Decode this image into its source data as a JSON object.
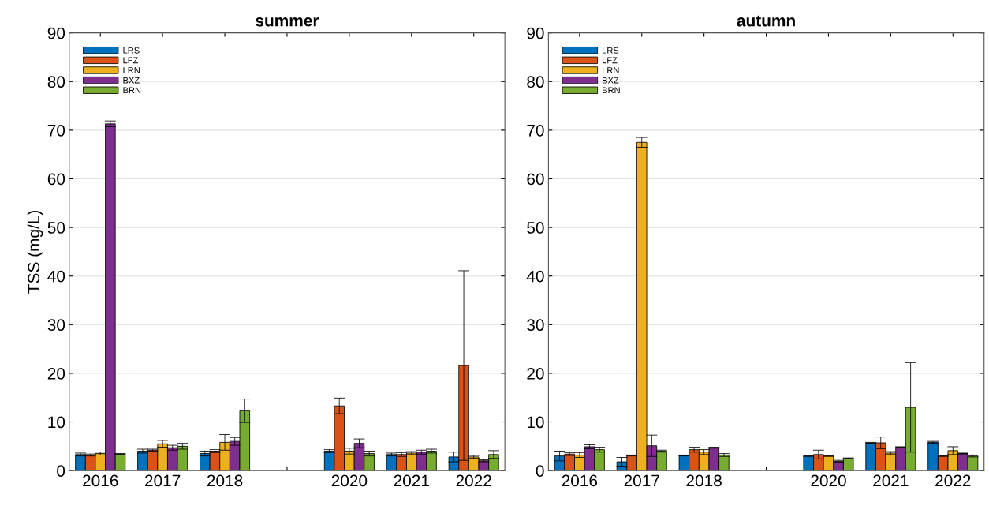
{
  "chart_data": [
    {
      "type": "bar",
      "title": "summer",
      "ylabel": "TSS (mg/L)",
      "categories": [
        "2016",
        "2017",
        "2018",
        null,
        "2020",
        "2021",
        "2022"
      ],
      "ylim": [
        0,
        90
      ],
      "yticks": [
        0,
        10,
        20,
        30,
        40,
        50,
        60,
        70,
        80,
        90
      ],
      "grid": "y",
      "legend": "top left",
      "series": [
        {
          "name": "LRS",
          "color": "#0072bd",
          "values": [
            3.3,
            4.0,
            3.5,
            null,
            4.0,
            3.3,
            2.8
          ],
          "errors": [
            0.3,
            0.4,
            0.5,
            null,
            0.3,
            0.3,
            1.0
          ]
        },
        {
          "name": "LFZ",
          "color": "#d95319",
          "values": [
            3.2,
            4.2,
            4.0,
            null,
            13.3,
            3.3,
            21.6
          ],
          "errors": [
            0.2,
            0.2,
            0.3,
            null,
            1.6,
            0.4,
            19.5
          ]
        },
        {
          "name": "LRN",
          "color": "#edb120",
          "values": [
            3.5,
            5.5,
            5.8,
            null,
            4.0,
            3.6,
            2.8
          ],
          "errors": [
            0.3,
            0.7,
            1.6,
            null,
            0.6,
            0.3,
            0.3
          ]
        },
        {
          "name": "BXZ",
          "color": "#7e2f8e",
          "values": [
            71.3,
            4.7,
            6.0,
            null,
            5.6,
            3.8,
            2.0
          ],
          "errors": [
            0.6,
            0.5,
            0.8,
            null,
            0.9,
            0.4,
            0.2
          ]
        },
        {
          "name": "BRN",
          "color": "#77ac30",
          "values": [
            3.4,
            5.0,
            12.3,
            null,
            3.5,
            4.0,
            3.3
          ],
          "errors": [
            0.1,
            0.6,
            2.4,
            null,
            0.5,
            0.4,
            0.8
          ]
        }
      ]
    },
    {
      "type": "bar",
      "title": "autumn",
      "categories": [
        "2016",
        "2017",
        "2018",
        null,
        "2020",
        "2021",
        "2022"
      ],
      "ylim": [
        0,
        90
      ],
      "yticks": [
        0,
        10,
        20,
        30,
        40,
        50,
        60,
        70,
        80,
        90
      ],
      "grid": "y",
      "legend": "top left",
      "series": [
        {
          "name": "LRS",
          "color": "#0072bd",
          "values": [
            3.0,
            1.8,
            3.1,
            null,
            3.0,
            5.7,
            5.8
          ],
          "errors": [
            1.0,
            0.9,
            0.1,
            null,
            0.1,
            0.1,
            0.2
          ]
        },
        {
          "name": "LFZ",
          "color": "#d95319",
          "values": [
            3.4,
            3.1,
            4.3,
            null,
            3.3,
            5.7,
            3.0
          ],
          "errors": [
            0.3,
            0.1,
            0.5,
            null,
            0.9,
            1.2,
            0.1
          ]
        },
        {
          "name": "LRN",
          "color": "#edb120",
          "values": [
            3.2,
            67.5,
            3.8,
            null,
            3.0,
            3.6,
            4.1
          ],
          "errors": [
            0.5,
            1.0,
            0.5,
            null,
            0.1,
            0.3,
            0.8
          ]
        },
        {
          "name": "BXZ",
          "color": "#7e2f8e",
          "values": [
            4.9,
            5.1,
            4.7,
            null,
            1.9,
            4.8,
            3.5
          ],
          "errors": [
            0.4,
            2.2,
            0.1,
            null,
            0.2,
            0.1,
            0.1
          ]
        },
        {
          "name": "BRN",
          "color": "#77ac30",
          "values": [
            4.3,
            4.0,
            3.2,
            null,
            2.5,
            13.0,
            3.0
          ],
          "errors": [
            0.5,
            0.2,
            0.3,
            null,
            0.1,
            9.2,
            0.2
          ]
        }
      ]
    }
  ]
}
